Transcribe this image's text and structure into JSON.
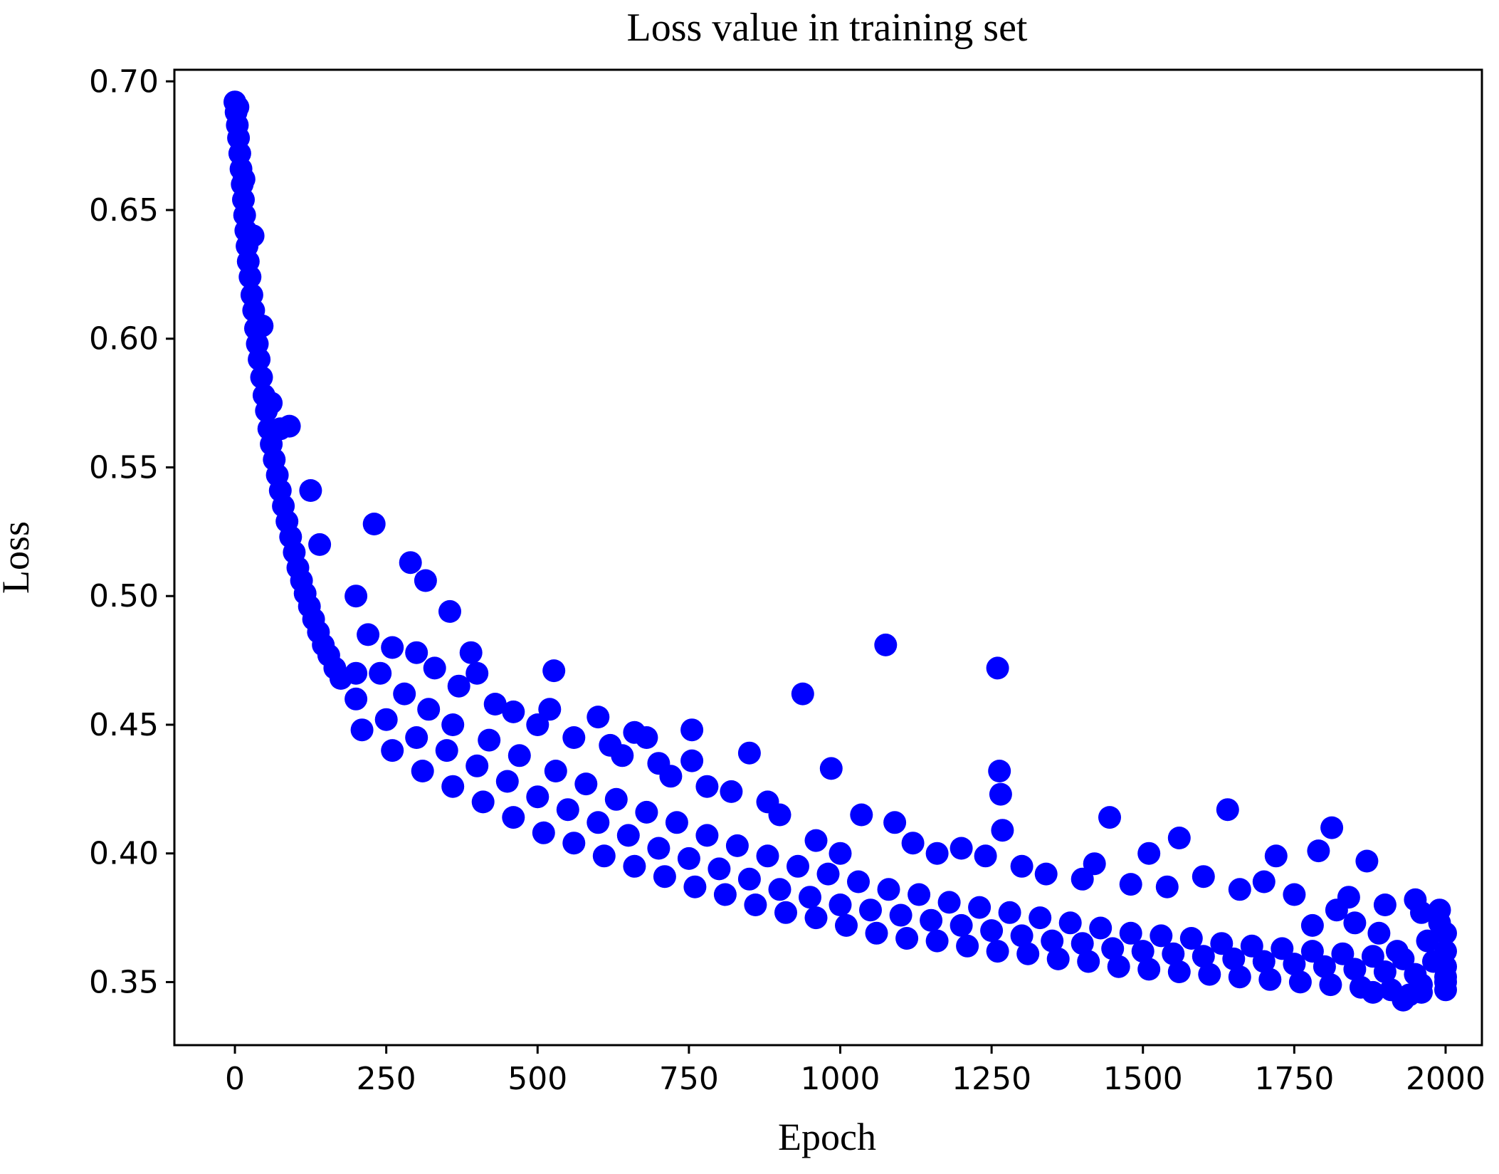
{
  "chart_data": {
    "type": "scatter",
    "title": "Loss value in training set",
    "xlabel": "Epoch",
    "ylabel": "Loss",
    "xlim": [
      -100,
      2060
    ],
    "ylim": [
      0.3255,
      0.7045
    ],
    "xticks": [
      0,
      250,
      500,
      750,
      1000,
      1250,
      1500,
      1750,
      2000
    ],
    "xtick_labels": [
      "0",
      "250",
      "500",
      "750",
      "1000",
      "1250",
      "1500",
      "1750",
      "2000"
    ],
    "yticks": [
      0.35,
      0.4,
      0.45,
      0.5,
      0.55,
      0.6,
      0.65,
      0.7
    ],
    "ytick_labels": [
      "0.35",
      "0.40",
      "0.45",
      "0.50",
      "0.55",
      "0.60",
      "0.65",
      "0.70"
    ],
    "grid": false,
    "marker_color": "#0000ff",
    "series": [
      {
        "points": [
          [
            0,
            0.692
          ],
          [
            2,
            0.688
          ],
          [
            4,
            0.683
          ],
          [
            6,
            0.678
          ],
          [
            8,
            0.672
          ],
          [
            10,
            0.666
          ],
          [
            12,
            0.66
          ],
          [
            14,
            0.654
          ],
          [
            16,
            0.648
          ],
          [
            18,
            0.642
          ],
          [
            20,
            0.636
          ],
          [
            22,
            0.63
          ],
          [
            25,
            0.624
          ],
          [
            28,
            0.617
          ],
          [
            31,
            0.611
          ],
          [
            34,
            0.604
          ],
          [
            37,
            0.598
          ],
          [
            40,
            0.592
          ],
          [
            44,
            0.585
          ],
          [
            48,
            0.578
          ],
          [
            52,
            0.572
          ],
          [
            56,
            0.565
          ],
          [
            60,
            0.559
          ],
          [
            65,
            0.553
          ],
          [
            70,
            0.547
          ],
          [
            75,
            0.541
          ],
          [
            80,
            0.535
          ],
          [
            86,
            0.529
          ],
          [
            92,
            0.523
          ],
          [
            98,
            0.517
          ],
          [
            104,
            0.511
          ],
          [
            110,
            0.506
          ],
          [
            116,
            0.501
          ],
          [
            123,
            0.496
          ],
          [
            130,
            0.491
          ],
          [
            138,
            0.486
          ],
          [
            146,
            0.481
          ],
          [
            155,
            0.477
          ],
          [
            165,
            0.472
          ],
          [
            175,
            0.468
          ],
          [
            5,
            0.69
          ],
          [
            15,
            0.662
          ],
          [
            30,
            0.64
          ],
          [
            45,
            0.605
          ],
          [
            60,
            0.575
          ],
          [
            75,
            0.565
          ],
          [
            90,
            0.566
          ],
          [
            125,
            0.541
          ],
          [
            140,
            0.52
          ],
          [
            200,
            0.5
          ],
          [
            230,
            0.528
          ],
          [
            290,
            0.513
          ],
          [
            315,
            0.506
          ],
          [
            355,
            0.494
          ],
          [
            390,
            0.478
          ],
          [
            527,
            0.471
          ],
          [
            1075,
            0.481
          ],
          [
            1260,
            0.472
          ],
          [
            938,
            0.462
          ],
          [
            985,
            0.433
          ],
          [
            1263,
            0.432
          ],
          [
            1265,
            0.423
          ],
          [
            1268,
            0.409
          ],
          [
            1035,
            0.415
          ],
          [
            1445,
            0.414
          ],
          [
            1640,
            0.417
          ],
          [
            1812,
            0.41
          ],
          [
            1510,
            0.4
          ],
          [
            1560,
            0.406
          ],
          [
            1720,
            0.399
          ],
          [
            1790,
            0.401
          ],
          [
            1870,
            0.397
          ],
          [
            600,
            0.453
          ],
          [
            660,
            0.447
          ],
          [
            680,
            0.445
          ],
          [
            755,
            0.448
          ],
          [
            755,
            0.436
          ],
          [
            850,
            0.439
          ],
          [
            720,
            0.43
          ],
          [
            200,
            0.47
          ],
          [
            220,
            0.485
          ],
          [
            260,
            0.48
          ],
          [
            300,
            0.478
          ],
          [
            330,
            0.472
          ],
          [
            370,
            0.465
          ],
          [
            400,
            0.47
          ],
          [
            430,
            0.458
          ],
          [
            460,
            0.455
          ],
          [
            500,
            0.45
          ],
          [
            520,
            0.456
          ],
          [
            560,
            0.445
          ],
          [
            620,
            0.442
          ],
          [
            640,
            0.438
          ],
          [
            700,
            0.435
          ],
          [
            780,
            0.426
          ],
          [
            820,
            0.424
          ],
          [
            880,
            0.42
          ],
          [
            900,
            0.415
          ],
          [
            960,
            0.405
          ],
          [
            1000,
            0.4
          ],
          [
            1090,
            0.412
          ],
          [
            1120,
            0.404
          ],
          [
            1160,
            0.4
          ],
          [
            1200,
            0.402
          ],
          [
            1240,
            0.399
          ],
          [
            1300,
            0.395
          ],
          [
            1340,
            0.392
          ],
          [
            1400,
            0.39
          ],
          [
            1420,
            0.396
          ],
          [
            1480,
            0.388
          ],
          [
            1540,
            0.387
          ],
          [
            1600,
            0.391
          ],
          [
            1660,
            0.386
          ],
          [
            1700,
            0.389
          ],
          [
            1750,
            0.384
          ],
          [
            1840,
            0.383
          ],
          [
            1900,
            0.38
          ],
          [
            1950,
            0.382
          ],
          [
            1990,
            0.378
          ],
          [
            200,
            0.46
          ],
          [
            250,
            0.452
          ],
          [
            300,
            0.445
          ],
          [
            350,
            0.44
          ],
          [
            400,
            0.434
          ],
          [
            450,
            0.428
          ],
          [
            500,
            0.422
          ],
          [
            550,
            0.417
          ],
          [
            600,
            0.412
          ],
          [
            650,
            0.407
          ],
          [
            700,
            0.402
          ],
          [
            750,
            0.398
          ],
          [
            800,
            0.394
          ],
          [
            850,
            0.39
          ],
          [
            900,
            0.386
          ],
          [
            950,
            0.383
          ],
          [
            1000,
            0.38
          ],
          [
            1050,
            0.378
          ],
          [
            1100,
            0.376
          ],
          [
            1150,
            0.374
          ],
          [
            1200,
            0.372
          ],
          [
            1250,
            0.37
          ],
          [
            1300,
            0.368
          ],
          [
            1350,
            0.366
          ],
          [
            1400,
            0.365
          ],
          [
            1450,
            0.363
          ],
          [
            1500,
            0.362
          ],
          [
            1550,
            0.361
          ],
          [
            1600,
            0.36
          ],
          [
            1650,
            0.359
          ],
          [
            1700,
            0.358
          ],
          [
            1750,
            0.357
          ],
          [
            1800,
            0.356
          ],
          [
            1850,
            0.355
          ],
          [
            1900,
            0.354
          ],
          [
            1950,
            0.353
          ],
          [
            2000,
            0.352
          ],
          [
            210,
            0.448
          ],
          [
            260,
            0.44
          ],
          [
            310,
            0.432
          ],
          [
            360,
            0.426
          ],
          [
            410,
            0.42
          ],
          [
            460,
            0.414
          ],
          [
            510,
            0.408
          ],
          [
            560,
            0.404
          ],
          [
            610,
            0.399
          ],
          [
            660,
            0.395
          ],
          [
            710,
            0.391
          ],
          [
            760,
            0.387
          ],
          [
            810,
            0.384
          ],
          [
            860,
            0.38
          ],
          [
            910,
            0.377
          ],
          [
            960,
            0.375
          ],
          [
            1010,
            0.372
          ],
          [
            1060,
            0.369
          ],
          [
            1110,
            0.367
          ],
          [
            1160,
            0.366
          ],
          [
            1210,
            0.364
          ],
          [
            1260,
            0.362
          ],
          [
            1310,
            0.361
          ],
          [
            1360,
            0.359
          ],
          [
            1410,
            0.358
          ],
          [
            1460,
            0.356
          ],
          [
            1510,
            0.355
          ],
          [
            1560,
            0.354
          ],
          [
            1610,
            0.353
          ],
          [
            1660,
            0.352
          ],
          [
            1710,
            0.351
          ],
          [
            1760,
            0.35
          ],
          [
            1810,
            0.349
          ],
          [
            1860,
            0.348
          ],
          [
            1910,
            0.347
          ],
          [
            1960,
            0.346
          ],
          [
            2000,
            0.347
          ],
          [
            240,
            0.47
          ],
          [
            280,
            0.462
          ],
          [
            320,
            0.456
          ],
          [
            360,
            0.45
          ],
          [
            420,
            0.444
          ],
          [
            470,
            0.438
          ],
          [
            530,
            0.432
          ],
          [
            580,
            0.427
          ],
          [
            630,
            0.421
          ],
          [
            680,
            0.416
          ],
          [
            730,
            0.412
          ],
          [
            780,
            0.407
          ],
          [
            830,
            0.403
          ],
          [
            880,
            0.399
          ],
          [
            930,
            0.395
          ],
          [
            980,
            0.392
          ],
          [
            1030,
            0.389
          ],
          [
            1080,
            0.386
          ],
          [
            1130,
            0.384
          ],
          [
            1180,
            0.381
          ],
          [
            1230,
            0.379
          ],
          [
            1280,
            0.377
          ],
          [
            1330,
            0.375
          ],
          [
            1380,
            0.373
          ],
          [
            1430,
            0.371
          ],
          [
            1480,
            0.369
          ],
          [
            1530,
            0.368
          ],
          [
            1580,
            0.367
          ],
          [
            1630,
            0.365
          ],
          [
            1680,
            0.364
          ],
          [
            1730,
            0.363
          ],
          [
            1780,
            0.362
          ],
          [
            1830,
            0.361
          ],
          [
            1880,
            0.36
          ],
          [
            1930,
            0.359
          ],
          [
            1980,
            0.358
          ],
          [
            1930,
            0.343
          ],
          [
            1940,
            0.345
          ],
          [
            1880,
            0.346
          ],
          [
            1960,
            0.349
          ],
          [
            2000,
            0.35
          ],
          [
            2000,
            0.356
          ],
          [
            2000,
            0.362
          ],
          [
            2000,
            0.369
          ],
          [
            1990,
            0.373
          ],
          [
            1960,
            0.377
          ],
          [
            1970,
            0.366
          ],
          [
            1920,
            0.362
          ],
          [
            1890,
            0.369
          ],
          [
            1850,
            0.373
          ],
          [
            1820,
            0.378
          ],
          [
            1780,
            0.372
          ]
        ]
      }
    ]
  }
}
